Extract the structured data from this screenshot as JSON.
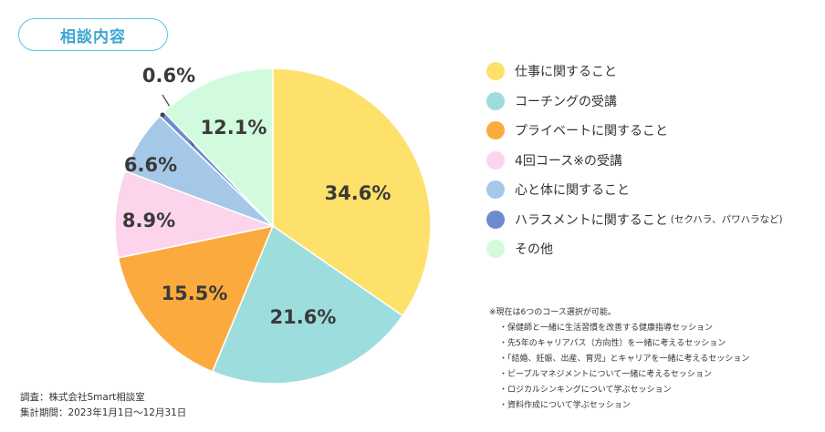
{
  "header": {
    "title": "相談内容"
  },
  "chart_data": {
    "type": "pie",
    "title": "相談内容",
    "slices": [
      {
        "label": "仕事に関すること",
        "value": 34.6,
        "display": "34.6%",
        "color": "#fde16a"
      },
      {
        "label": "コーチングの受講",
        "value": 21.6,
        "display": "21.6%",
        "color": "#9edddd"
      },
      {
        "label": "プライベートに関すること",
        "value": 15.5,
        "display": "15.5%",
        "color": "#fbab3d"
      },
      {
        "label": "4回コース※の受講",
        "value": 8.9,
        "display": "8.9%",
        "color": "#fcd4ec"
      },
      {
        "label": "心と体に関すること",
        "value": 6.6,
        "display": "6.6%",
        "color": "#a6c8e8"
      },
      {
        "label": "ハラスメントに関すること",
        "value": 0.6,
        "display": "0.6%",
        "color": "#6f8bd0"
      },
      {
        "label": "その他",
        "value": 12.1,
        "display": "12.1%",
        "color": "#d1fbdc"
      }
    ],
    "legend_notes": {
      "5": "(セクハラ、パワハラなど)"
    },
    "legend_position": "right"
  },
  "notes": {
    "heading": "※現在は6つのコース選択が可能。",
    "items": [
      "・保健師と一緒に生活習慣を改善する健康指導セッション",
      "・先5年のキャリアパス（方向性）を一緒に考えるセッション",
      "・「結婚、妊娠、出産、育児」とキャリアを一緒に考えるセッション",
      "・ピープルマネジメントについて一緒に考えるセッション",
      "・ロジカルシンキングについて学ぶセッション",
      "・資料作成について学ぶセッション"
    ]
  },
  "source": {
    "survey": "調査：株式会社Smart相談室",
    "period": "集計期間：2023年1月1日〜12月31日"
  }
}
